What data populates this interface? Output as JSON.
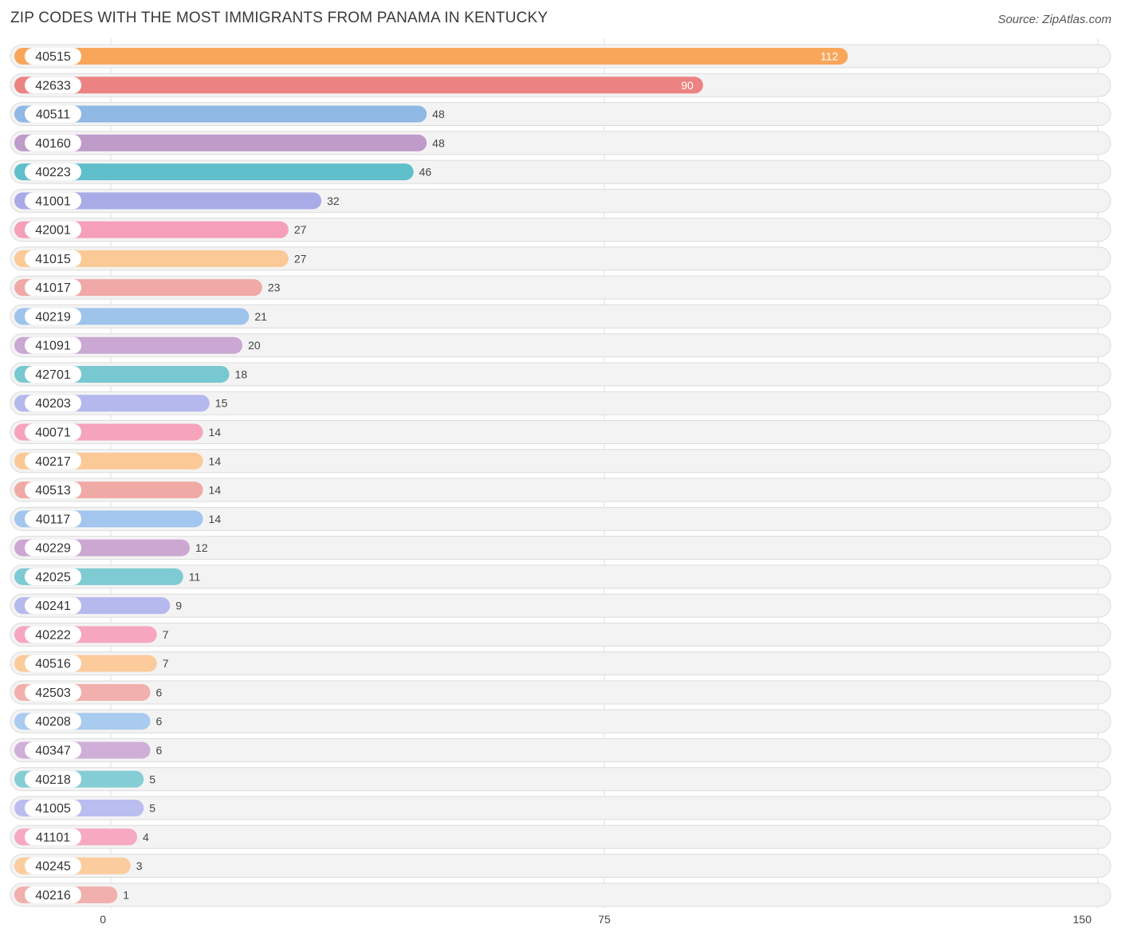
{
  "title": "ZIP CODES WITH THE MOST IMMIGRANTS FROM PANAMA IN KENTUCKY",
  "source": "Source: ZipAtlas.com",
  "chart_data": {
    "type": "bar",
    "orientation": "horizontal",
    "title": "ZIP CODES WITH THE MOST IMMIGRANTS FROM PANAMA IN KENTUCKY",
    "xlim": [
      0,
      150
    ],
    "xticks": [
      "0",
      "75",
      "150"
    ],
    "grid": true,
    "categories": [
      "40515",
      "42633",
      "40511",
      "40160",
      "40223",
      "41001",
      "42001",
      "41015",
      "41017",
      "40219",
      "41091",
      "42701",
      "40203",
      "40071",
      "40217",
      "40513",
      "40117",
      "40229",
      "42025",
      "40241",
      "40222",
      "40516",
      "42503",
      "40208",
      "40347",
      "40218",
      "41005",
      "41101",
      "40245",
      "40216"
    ],
    "values": [
      112,
      90,
      48,
      48,
      46,
      32,
      27,
      27,
      23,
      21,
      20,
      18,
      15,
      14,
      14,
      14,
      14,
      12,
      11,
      9,
      7,
      7,
      6,
      6,
      6,
      5,
      5,
      4,
      3,
      1
    ],
    "value_labels": [
      "112",
      "90",
      "48",
      "48",
      "46",
      "32",
      "27",
      "27",
      "23",
      "21",
      "20",
      "18",
      "15",
      "14",
      "14",
      "14",
      "14",
      "12",
      "11",
      "9",
      "7",
      "7",
      "6",
      "6",
      "6",
      "5",
      "5",
      "4",
      "3",
      "1"
    ],
    "colors": [
      "#f9a65a",
      "#ec8382",
      "#8fb8e4",
      "#bf9bc9",
      "#5fbfcb",
      "#a9abe7",
      "#f59fb9",
      "#fbc995",
      "#f0a9a6",
      "#9fc4ec",
      "#caa8d3",
      "#77c8d0",
      "#b4b8ed",
      "#f6a3bc",
      "#fbc995",
      "#f0aaa6",
      "#a3c6ee",
      "#cba7d2",
      "#7fcbd3",
      "#b6b9ee",
      "#f6a7bf",
      "#fbcb9b",
      "#f1b0ad",
      "#a8cbef",
      "#cfaed7",
      "#85ced5",
      "#babdef",
      "#f6a9c0",
      "#fbcc9e",
      "#f1b0ad"
    ]
  }
}
